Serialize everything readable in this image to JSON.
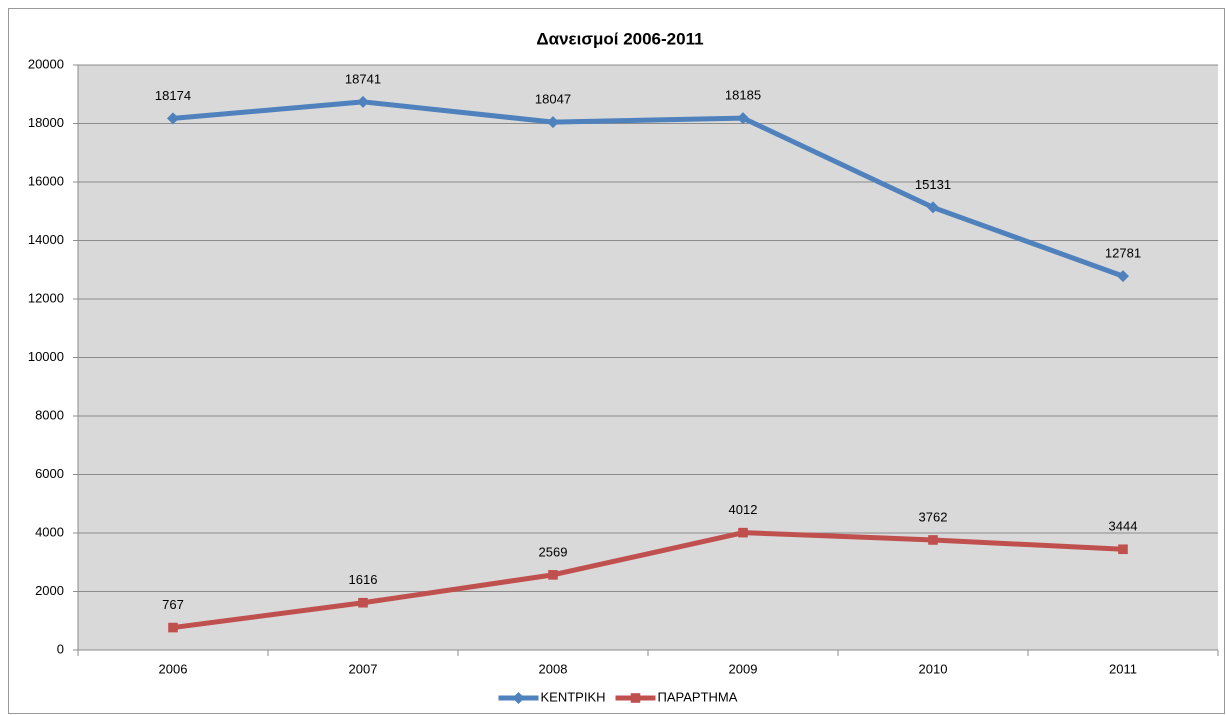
{
  "chart_data": {
    "type": "line",
    "title": "Δανεισμοί 2006-2011",
    "categories": [
      "2006",
      "2007",
      "2008",
      "2009",
      "2010",
      "2011"
    ],
    "series": [
      {
        "name": "ΚΕΝΤΡΙΚΗ",
        "color": "#4f81bd",
        "marker": "diamond",
        "values": [
          18174,
          18741,
          18047,
          18185,
          15131,
          12781
        ]
      },
      {
        "name": "ΠΑΡΑΡΤΗΜΑ",
        "color": "#c0504d",
        "marker": "square",
        "values": [
          767,
          1616,
          2569,
          4012,
          3762,
          3444
        ]
      }
    ],
    "ylim": [
      0,
      20000
    ],
    "yticks": [
      0,
      2000,
      4000,
      6000,
      8000,
      10000,
      12000,
      14000,
      16000,
      18000,
      20000
    ],
    "grid": true,
    "legend": "bottom"
  }
}
